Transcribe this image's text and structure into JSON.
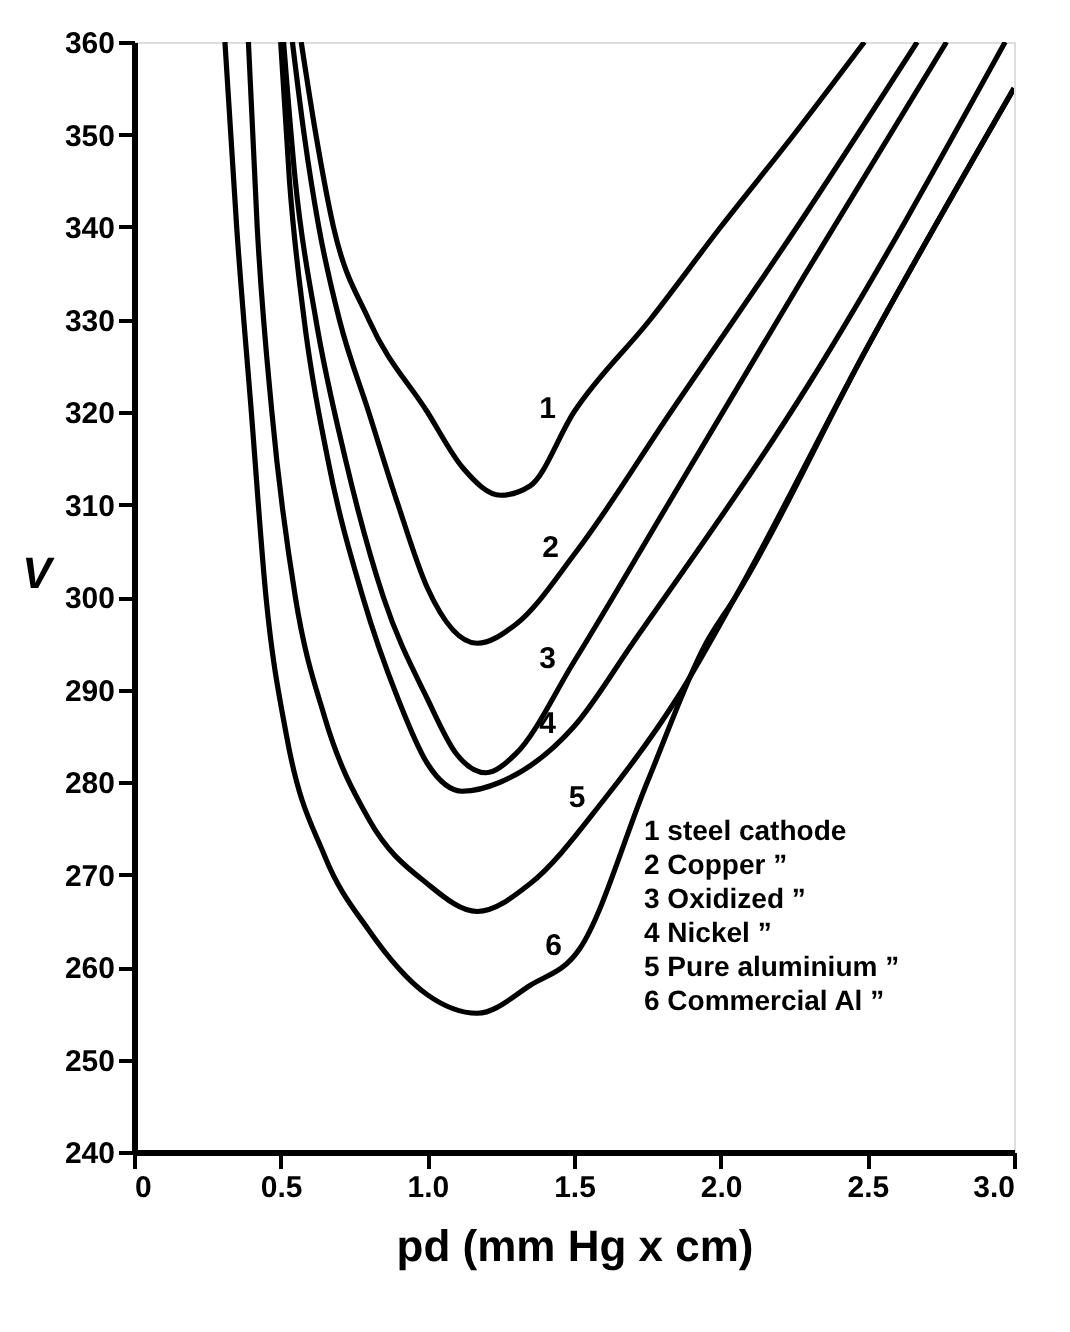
{
  "chart_data": {
    "type": "line",
    "xlabel": "pd (mm Hg x cm)",
    "ylabel": "V",
    "xlim": [
      0,
      3.0
    ],
    "xticks": [
      0,
      0.5,
      {
        "value": 1,
        "label": "1.0"
      },
      1.5,
      {
        "value": 2,
        "label": "2.0"
      },
      2.5,
      {
        "value": 3,
        "label": "3.0"
      }
    ],
    "ylim": [
      240,
      360
    ],
    "yticks": [
      240,
      250,
      260,
      270,
      280,
      290,
      300,
      310,
      320,
      330,
      340,
      350,
      360
    ],
    "grid": false,
    "marker": "none",
    "line_style": "solid",
    "series": [
      {
        "color": "#000000",
        "x": [
          0.57,
          0.62,
          0.68,
          0.8,
          1.0,
          1.12,
          1.25,
          1.35,
          1.5,
          1.76,
          2.0,
          2.25,
          2.49
        ],
        "values": [
          360,
          350,
          340,
          330,
          320,
          314,
          311,
          312,
          320,
          330,
          340,
          350,
          360
        ]
      },
      {
        "color": "#000000",
        "x": [
          0.54,
          0.58,
          0.63,
          0.7,
          0.8,
          0.9,
          1.0,
          1.17,
          1.3,
          1.51,
          1.83,
          2.26,
          2.67
        ],
        "values": [
          360,
          350,
          340,
          330,
          320,
          310,
          301,
          295,
          297,
          305,
          320,
          340,
          360
        ]
      },
      {
        "color": "#000000",
        "x": [
          0.51,
          0.55,
          0.62,
          0.72,
          0.85,
          1.0,
          1.1,
          1.2,
          1.3,
          1.5,
          1.82,
          2.29,
          2.77
        ],
        "values": [
          360,
          345,
          330,
          315,
          300,
          289,
          283,
          281,
          283,
          293,
          310,
          335,
          360
        ]
      },
      {
        "color": "#000000",
        "x": [
          0.5,
          0.53,
          0.58,
          0.66,
          0.78,
          0.9,
          1.0,
          1.12,
          1.25,
          1.5,
          1.7,
          2.3,
          2.97
        ],
        "values": [
          360,
          345,
          330,
          315,
          300,
          289,
          282,
          279,
          280,
          286,
          295,
          323,
          360
        ]
      },
      {
        "color": "#000000",
        "x": [
          0.39,
          0.42,
          0.47,
          0.55,
          0.65,
          0.8,
          1.0,
          1.17,
          1.35,
          1.6,
          1.85,
          2.05,
          2.5,
          3.0
        ],
        "values": [
          360,
          340,
          320,
          300,
          287,
          276,
          269,
          266,
          269,
          278,
          289,
          300,
          327,
          355
        ]
      },
      {
        "color": "#000000",
        "x": [
          0.31,
          0.35,
          0.4,
          0.45,
          0.52,
          0.65,
          0.8,
          1.0,
          1.17,
          1.35,
          1.52,
          1.75,
          1.95,
          2.05,
          2.5,
          3.0
        ],
        "values": [
          360,
          340,
          320,
          300,
          285,
          272,
          264,
          257,
          255,
          258,
          262,
          280,
          295,
          300,
          327,
          355
        ]
      }
    ],
    "annotations": [
      {
        "text": "1",
        "x": 1.5,
        "y": 320
      },
      {
        "text": "2",
        "x": 1.51,
        "y": 305
      },
      {
        "text": "3",
        "x": 1.5,
        "y": 293
      },
      {
        "text": "4",
        "x": 1.5,
        "y": 286
      },
      {
        "text": "5",
        "x": 1.6,
        "y": 278
      },
      {
        "text": "6",
        "x": 1.52,
        "y": 262
      },
      "1  steel cathode",
      "2  Copper                    ”",
      "3  Oxidized                  ”",
      "4  Nickel                      ”",
      "5  Pure aluminium        ”",
      "6  Commercial Al          ”"
    ]
  }
}
